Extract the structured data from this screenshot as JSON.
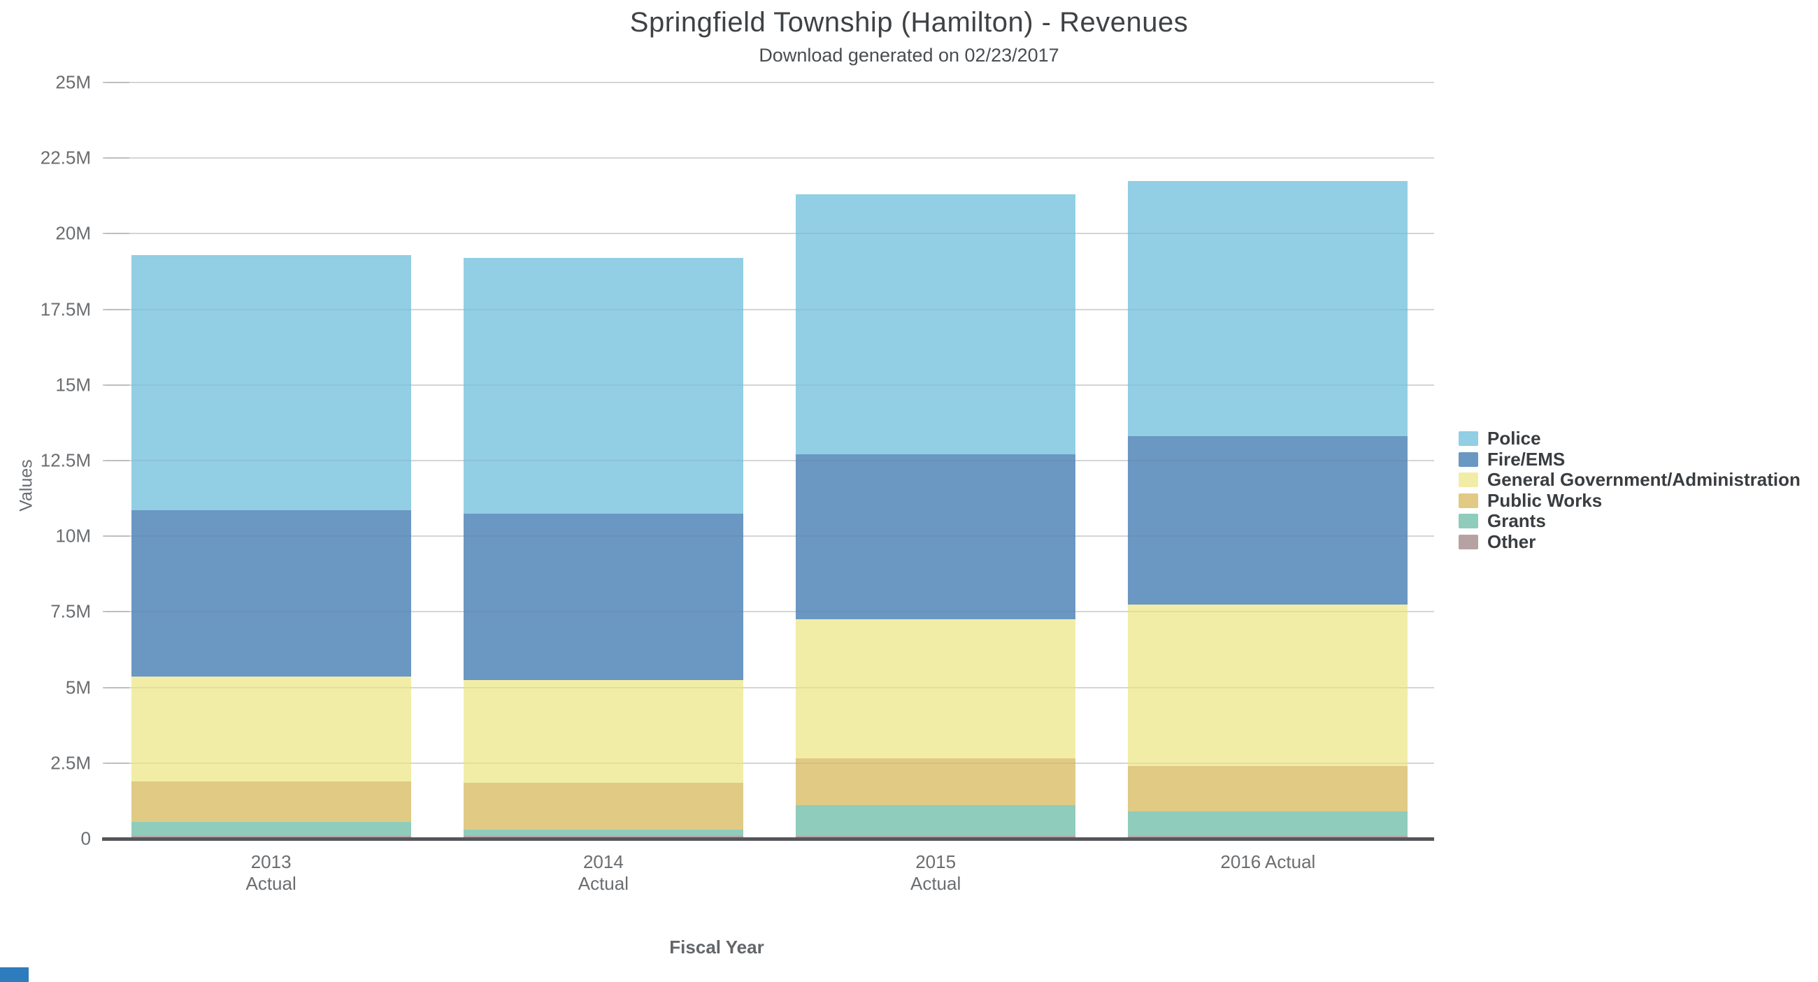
{
  "chart_data": {
    "type": "bar",
    "stacked": true,
    "title": "Springfield Township (Hamilton) - Revenues",
    "subtitle": "Download generated on 02/23/2017",
    "xlabel": "Fiscal Year",
    "ylabel": "Values",
    "value_unit": "millions of dollars",
    "ylim": [
      0,
      25
    ],
    "grid": true,
    "legend_position": "right",
    "yticks": [
      {
        "value": 0,
        "label": "0"
      },
      {
        "value": 2.5,
        "label": "2.5M"
      },
      {
        "value": 5,
        "label": "5M"
      },
      {
        "value": 7.5,
        "label": "7.5M"
      },
      {
        "value": 10,
        "label": "10M"
      },
      {
        "value": 12.5,
        "label": "12.5M"
      },
      {
        "value": 15,
        "label": "15M"
      },
      {
        "value": 17.5,
        "label": "17.5M"
      },
      {
        "value": 20,
        "label": "20M"
      },
      {
        "value": 22.5,
        "label": "22.5M"
      },
      {
        "value": 25,
        "label": "25M"
      }
    ],
    "categories": [
      {
        "lines": [
          "2013",
          "Actual"
        ]
      },
      {
        "lines": [
          "2014",
          "Actual"
        ]
      },
      {
        "lines": [
          "2015",
          "Actual"
        ]
      },
      {
        "lines": [
          "2016 Actual"
        ]
      }
    ],
    "series": [
      {
        "name": "Police",
        "color": "#92CEE4",
        "values": [
          8.45,
          8.45,
          8.6,
          8.45
        ]
      },
      {
        "name": "Fire/EMS",
        "color": "#6B97C3",
        "values": [
          5.5,
          5.5,
          5.45,
          5.55
        ]
      },
      {
        "name": "General Government/Administration",
        "color": "#F1EDA7",
        "values": [
          3.45,
          3.4,
          4.6,
          5.35
        ]
      },
      {
        "name": "Public Works",
        "color": "#E0CA84",
        "values": [
          1.35,
          1.55,
          1.55,
          1.5
        ]
      },
      {
        "name": "Grants",
        "color": "#8FCCBB",
        "values": [
          0.45,
          0.2,
          1.0,
          0.8
        ]
      },
      {
        "name": "Other",
        "color": "#B7A2A3",
        "values": [
          0.1,
          0.1,
          0.1,
          0.1
        ]
      }
    ],
    "stack_totals": [
      19.3,
      19.2,
      21.3,
      21.75
    ]
  },
  "style_colors": {
    "gridline": "#e3e3e3",
    "axis_line": "#55565a",
    "text_muted": "#6a6d70",
    "corner_badge_blue": "#2e7cbe"
  }
}
